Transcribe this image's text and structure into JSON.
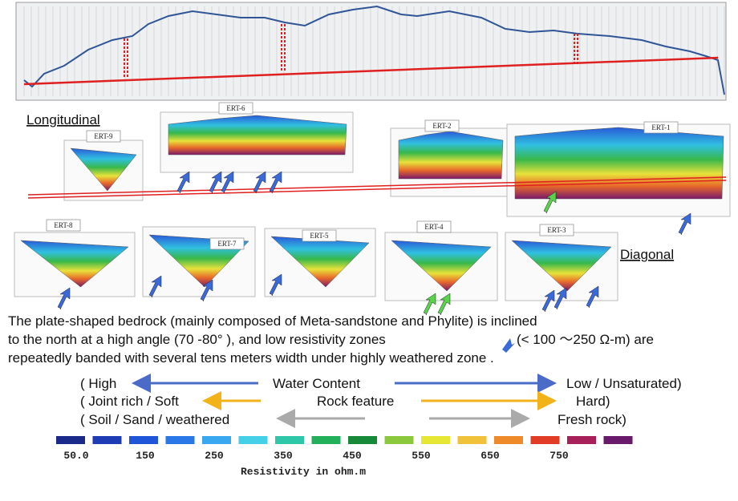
{
  "labels": {
    "longitudinal": "Longitudinal",
    "diagonal": "Diagonal"
  },
  "ert_panels": [
    {
      "label": "ERT-9"
    },
    {
      "label": "ERT-6"
    },
    {
      "label": "ERT-2"
    },
    {
      "label": "ERT-1"
    },
    {
      "label": "ERT-8"
    },
    {
      "label": "ERT-7"
    },
    {
      "label": "ERT-5"
    },
    {
      "label": "ERT-4"
    },
    {
      "label": "ERT-3"
    }
  ],
  "description": [
    "The plate-shaped bedrock (mainly composed of Meta-sandstone and Phylite) is inclined",
    "to the north at a high angle (70 -80°  ), and low resistivity zones",
    "(< 100 ～250 Ω-m) are",
    "repeatedly banded with several tens meters width under highly weathered zone ."
  ],
  "legend_rows": [
    {
      "left": "(   High",
      "middle": "Water Content",
      "right": "Low / Unsaturated)"
    },
    {
      "left": "(  Joint rich / Soft",
      "middle": "Rock feature",
      "right": "Hard)"
    },
    {
      "left": "( Soil / Sand / weathered",
      "right": "Fresh rock)"
    }
  ],
  "colorbar": {
    "labels": [
      "50.0",
      "150",
      "250",
      "350",
      "450",
      "550",
      "650",
      "750"
    ],
    "title": "Resistivity in ohm.m",
    "colors": [
      "#1a2a8a",
      "#1e3cb4",
      "#1f55d8",
      "#2a78e8",
      "#3aa8f0",
      "#45d0e8",
      "#2ec7a8",
      "#22b05a",
      "#178a3a",
      "#8cc83c",
      "#e6e634",
      "#f0c23a",
      "#ee8a2a",
      "#e03c26",
      "#a8205a",
      "#6a1a6a"
    ]
  }
}
